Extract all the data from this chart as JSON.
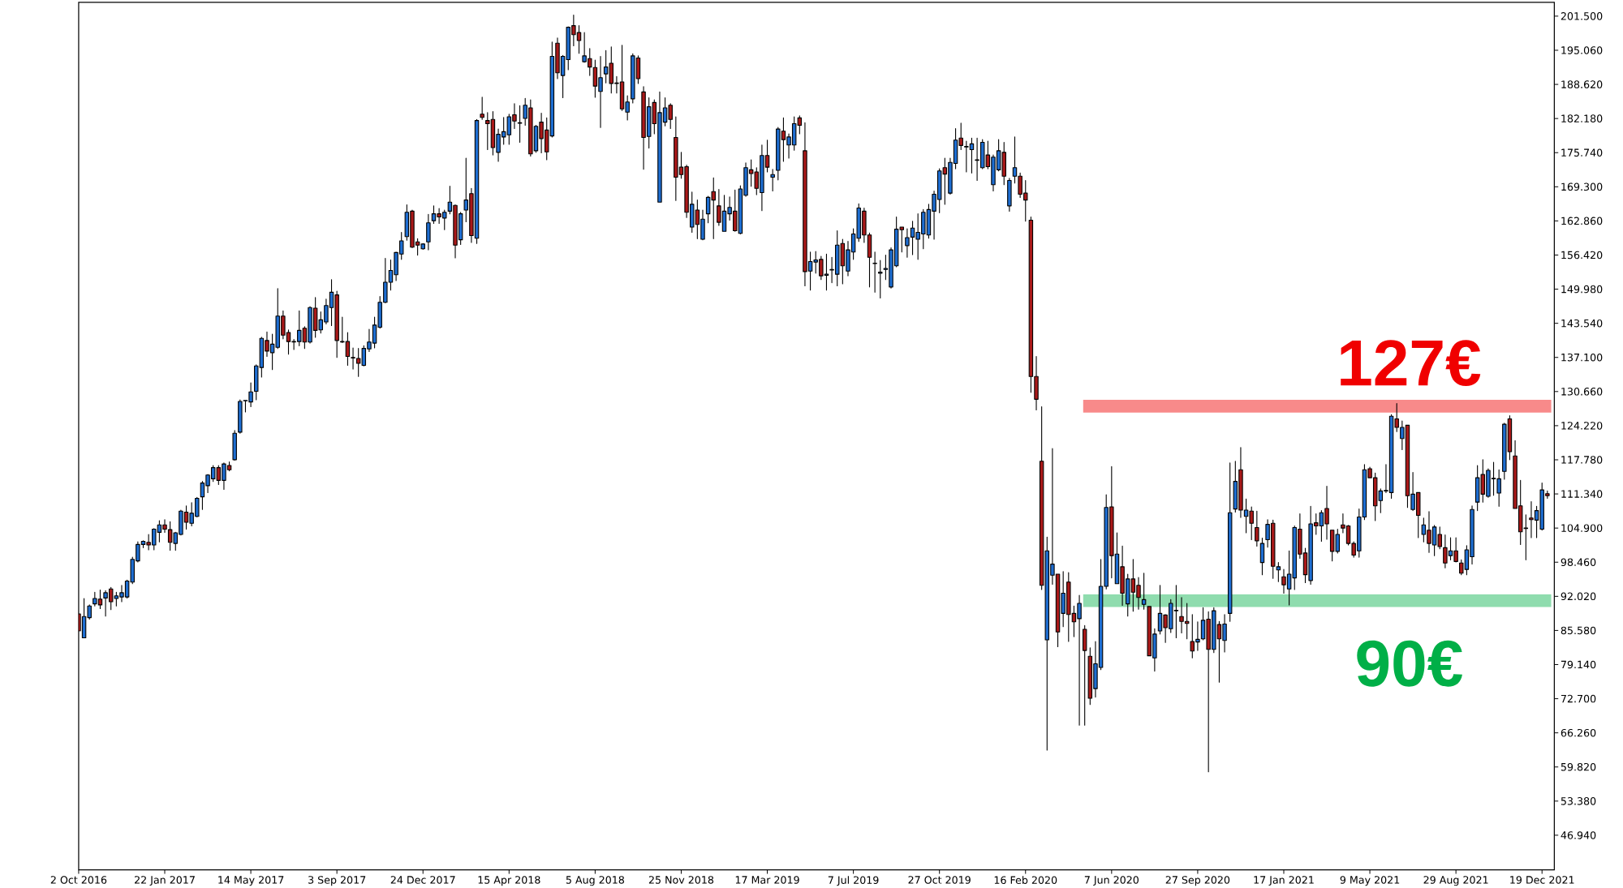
{
  "chart_data": {
    "type": "candlestick",
    "x": [
      "2016-10-02",
      "2016-10-09",
      "2016-10-16",
      "2016-10-23",
      "2016-10-30",
      "2016-11-06",
      "2016-11-13",
      "2016-11-20",
      "2016-11-27",
      "2016-12-04",
      "2016-12-11",
      "2016-12-18",
      "2016-12-25",
      "2017-01-01",
      "2017-01-08",
      "2017-01-15",
      "2017-01-22",
      "2017-01-29",
      "2017-02-05",
      "2017-02-12",
      "2017-02-19",
      "2017-02-26",
      "2017-03-05",
      "2017-03-12",
      "2017-03-19",
      "2017-03-26",
      "2017-04-02",
      "2017-04-09",
      "2017-04-16",
      "2017-04-23",
      "2017-04-30",
      "2017-05-07",
      "2017-05-14",
      "2017-05-21",
      "2017-05-28",
      "2017-06-04",
      "2017-06-11",
      "2017-06-18",
      "2017-06-25",
      "2017-07-02",
      "2017-07-09",
      "2017-07-16",
      "2017-07-23",
      "2017-07-30",
      "2017-08-06",
      "2017-08-13",
      "2017-08-20",
      "2017-08-27",
      "2017-09-03",
      "2017-09-10",
      "2017-09-17",
      "2017-09-24",
      "2017-10-01",
      "2017-10-08",
      "2017-10-15",
      "2017-10-22",
      "2017-10-29",
      "2017-11-05",
      "2017-11-12",
      "2017-11-19",
      "2017-11-26",
      "2017-12-03",
      "2017-12-10",
      "2017-12-17",
      "2017-12-24",
      "2017-12-31",
      "2018-01-07",
      "2018-01-14",
      "2018-01-21",
      "2018-01-28",
      "2018-02-04",
      "2018-02-11",
      "2018-02-18",
      "2018-02-25",
      "2018-03-04",
      "2018-03-11",
      "2018-03-18",
      "2018-03-25",
      "2018-04-01",
      "2018-04-08",
      "2018-04-15",
      "2018-04-22",
      "2018-04-29",
      "2018-05-06",
      "2018-05-13",
      "2018-05-20",
      "2018-05-27",
      "2018-06-03",
      "2018-06-10",
      "2018-06-17",
      "2018-06-24",
      "2018-07-01",
      "2018-07-08",
      "2018-07-15",
      "2018-07-22",
      "2018-07-29",
      "2018-08-05",
      "2018-08-12",
      "2018-08-19",
      "2018-08-26",
      "2018-09-02",
      "2018-09-09",
      "2018-09-16",
      "2018-09-23",
      "2018-09-30",
      "2018-10-07",
      "2018-10-14",
      "2018-10-21",
      "2018-10-28",
      "2018-11-04",
      "2018-11-11",
      "2018-11-18",
      "2018-11-25",
      "2018-12-02",
      "2018-12-09",
      "2018-12-16",
      "2018-12-23",
      "2018-12-30",
      "2019-01-06",
      "2019-01-13",
      "2019-01-20",
      "2019-01-27",
      "2019-02-03",
      "2019-02-10",
      "2019-02-17",
      "2019-02-24",
      "2019-03-03",
      "2019-03-10",
      "2019-03-17",
      "2019-03-24",
      "2019-03-31",
      "2019-04-07",
      "2019-04-14",
      "2019-04-21",
      "2019-04-28",
      "2019-05-05",
      "2019-05-12",
      "2019-05-19",
      "2019-05-26",
      "2019-06-02",
      "2019-06-09",
      "2019-06-16",
      "2019-06-23",
      "2019-06-30",
      "2019-07-07",
      "2019-07-14",
      "2019-07-21",
      "2019-07-28",
      "2019-08-04",
      "2019-08-11",
      "2019-08-18",
      "2019-08-25",
      "2019-09-01",
      "2019-09-08",
      "2019-09-15",
      "2019-09-22",
      "2019-09-29",
      "2019-10-06",
      "2019-10-13",
      "2019-10-20",
      "2019-10-27",
      "2019-11-03",
      "2019-11-10",
      "2019-11-17",
      "2019-11-24",
      "2019-12-01",
      "2019-12-08",
      "2019-12-15",
      "2019-12-22",
      "2019-12-29",
      "2020-01-05",
      "2020-01-12",
      "2020-01-19",
      "2020-01-26",
      "2020-02-02",
      "2020-02-09",
      "2020-02-16",
      "2020-02-23",
      "2020-03-01",
      "2020-03-08",
      "2020-03-15",
      "2020-03-22",
      "2020-03-29",
      "2020-04-05",
      "2020-04-12",
      "2020-04-19",
      "2020-04-26",
      "2020-05-03",
      "2020-05-10",
      "2020-05-17",
      "2020-05-24",
      "2020-05-31",
      "2020-06-07",
      "2020-06-14",
      "2020-06-21",
      "2020-06-28",
      "2020-07-05",
      "2020-07-12",
      "2020-07-19",
      "2020-07-26",
      "2020-08-02",
      "2020-08-09",
      "2020-08-16",
      "2020-08-23",
      "2020-08-30",
      "2020-09-06",
      "2020-09-13",
      "2020-09-20",
      "2020-09-27",
      "2020-10-04",
      "2020-10-11",
      "2020-10-18",
      "2020-10-25",
      "2020-11-01",
      "2020-11-08",
      "2020-11-15",
      "2020-11-22",
      "2020-11-29",
      "2020-12-06",
      "2020-12-13",
      "2020-12-20",
      "2020-12-27",
      "2021-01-03",
      "2021-01-10",
      "2021-01-17",
      "2021-01-24",
      "2021-01-31",
      "2021-02-07",
      "2021-02-14",
      "2021-02-21",
      "2021-02-28",
      "2021-03-07",
      "2021-03-14",
      "2021-03-21",
      "2021-03-28",
      "2021-04-04",
      "2021-04-11",
      "2021-04-18",
      "2021-04-25",
      "2021-05-02",
      "2021-05-09",
      "2021-05-16",
      "2021-05-23",
      "2021-05-30",
      "2021-06-06",
      "2021-06-13",
      "2021-06-20",
      "2021-06-27",
      "2021-07-04",
      "2021-07-11",
      "2021-07-18",
      "2021-07-25",
      "2021-08-01",
      "2021-08-08",
      "2021-08-15",
      "2021-08-22",
      "2021-08-29",
      "2021-09-05",
      "2021-09-12",
      "2021-09-19",
      "2021-09-26",
      "2021-10-03",
      "2021-10-10",
      "2021-10-17",
      "2021-10-24",
      "2021-10-31",
      "2021-11-07",
      "2021-11-14",
      "2021-11-21",
      "2021-11-28",
      "2021-12-05",
      "2021-12-12",
      "2021-12-19",
      "2021-12-26"
    ],
    "ohlc": [
      [
        88.7,
        88.7,
        85.5,
        85.5
      ],
      [
        84.2,
        91.6,
        84.2,
        88.2
      ],
      [
        88.0,
        90.4,
        87.7,
        90.2
      ],
      [
        90.6,
        92.8,
        90.2,
        91.6
      ],
      [
        91.5,
        93.2,
        89.7,
        90.4
      ],
      [
        91.7,
        93.1,
        88.3,
        92.7
      ],
      [
        93.4,
        93.7,
        89.5,
        91.0
      ],
      [
        91.6,
        92.8,
        90.2,
        92.1
      ],
      [
        91.9,
        94.1,
        91.0,
        92.7
      ],
      [
        91.9,
        95.1,
        91.7,
        94.9
      ],
      [
        94.7,
        99.4,
        94.4,
        99.0
      ],
      [
        98.7,
        102.3,
        98.5,
        101.8
      ],
      [
        101.8,
        102.5,
        101.2,
        102.4
      ],
      [
        102.2,
        103.7,
        100.8,
        101.7
      ],
      [
        101.7,
        104.8,
        100.8,
        104.7
      ],
      [
        104.1,
        106.3,
        102.3,
        105.5
      ],
      [
        105.5,
        106.5,
        104.1,
        104.7
      ],
      [
        104.6,
        106.1,
        100.7,
        102.2
      ],
      [
        102.0,
        104.1,
        100.7,
        104.0
      ],
      [
        103.7,
        108.3,
        103.6,
        108.1
      ],
      [
        107.9,
        109.1,
        104.7,
        106.0
      ],
      [
        105.8,
        109.7,
        105.3,
        107.7
      ],
      [
        107.1,
        110.7,
        107.0,
        110.5
      ],
      [
        110.8,
        113.7,
        108.4,
        113.4
      ],
      [
        112.9,
        115.0,
        111.6,
        114.9
      ],
      [
        114.2,
        116.7,
        113.7,
        116.3
      ],
      [
        116.3,
        116.7,
        113.1,
        113.9
      ],
      [
        113.9,
        117.2,
        112.2,
        117.0
      ],
      [
        116.7,
        117.4,
        115.7,
        115.9
      ],
      [
        117.8,
        123.3,
        117.7,
        122.8
      ],
      [
        123.0,
        129.1,
        122.8,
        128.8
      ],
      [
        128.9,
        129.0,
        126.8,
        129.0
      ],
      [
        128.7,
        132.3,
        127.8,
        130.6
      ],
      [
        130.7,
        135.7,
        129.1,
        135.5
      ],
      [
        135.2,
        140.9,
        133.4,
        140.7
      ],
      [
        140.3,
        141.9,
        137.3,
        138.3
      ],
      [
        138.0,
        141.5,
        134.8,
        139.6
      ],
      [
        139.0,
        150.1,
        138.8,
        144.9
      ],
      [
        144.9,
        145.9,
        140.6,
        141.3
      ],
      [
        141.8,
        142.3,
        137.7,
        140.1
      ],
      [
        140.1,
        140.5,
        138.6,
        140.0
      ],
      [
        140.1,
        145.9,
        139.3,
        142.2
      ],
      [
        142.6,
        142.9,
        138.8,
        140.0
      ],
      [
        140.0,
        146.7,
        139.8,
        146.5
      ],
      [
        146.4,
        148.4,
        140.9,
        142.2
      ],
      [
        142.3,
        145.7,
        141.7,
        144.2
      ],
      [
        143.8,
        148.1,
        143.4,
        146.9
      ],
      [
        146.5,
        151.8,
        143.1,
        149.4
      ],
      [
        148.9,
        149.6,
        137.1,
        140.3
      ],
      [
        140.1,
        144.7,
        139.9,
        140.0
      ],
      [
        140.1,
        141.8,
        135.6,
        137.3
      ],
      [
        137.1,
        138.9,
        134.9,
        137.0
      ],
      [
        136.9,
        138.8,
        133.5,
        136.0
      ],
      [
        135.6,
        139.3,
        135.5,
        138.8
      ],
      [
        138.7,
        142.4,
        138.2,
        140.0
      ],
      [
        139.8,
        144.7,
        138.9,
        143.2
      ],
      [
        142.8,
        148.6,
        142.6,
        147.5
      ],
      [
        147.5,
        155.8,
        147.4,
        151.3
      ],
      [
        151.3,
        155.5,
        149.8,
        153.5
      ],
      [
        152.7,
        157.0,
        151.6,
        156.9
      ],
      [
        156.6,
        160.7,
        155.6,
        159.1
      ],
      [
        159.9,
        165.9,
        159.2,
        164.5
      ],
      [
        164.7,
        164.9,
        157.8,
        157.9
      ],
      [
        158.9,
        159.5,
        156.4,
        158.3
      ],
      [
        157.6,
        158.6,
        157.5,
        158.5
      ],
      [
        158.9,
        164.1,
        157.4,
        162.5
      ],
      [
        162.9,
        165.7,
        162.4,
        164.2
      ],
      [
        164.2,
        165.2,
        162.4,
        163.6
      ],
      [
        163.4,
        164.9,
        161.2,
        164.5
      ],
      [
        164.7,
        169.4,
        164.2,
        166.4
      ],
      [
        165.8,
        165.9,
        155.9,
        158.3
      ],
      [
        159.3,
        164.5,
        158.4,
        164.2
      ],
      [
        164.9,
        174.7,
        162.7,
        166.8
      ],
      [
        168.0,
        169.0,
        158.8,
        160.1
      ],
      [
        159.6,
        182.0,
        158.6,
        181.8
      ],
      [
        183.0,
        186.2,
        182.0,
        182.4
      ],
      [
        181.8,
        183.3,
        176.3,
        181.2
      ],
      [
        182.0,
        183.5,
        175.3,
        176.7
      ],
      [
        175.8,
        180.2,
        174.1,
        179.2
      ],
      [
        178.7,
        182.4,
        177.3,
        179.7
      ],
      [
        179.1,
        183.0,
        177.3,
        182.5
      ],
      [
        182.9,
        185.0,
        180.3,
        181.7
      ],
      [
        181.4,
        184.6,
        177.7,
        181.3
      ],
      [
        182.2,
        186.0,
        180.9,
        184.7
      ],
      [
        184.2,
        185.7,
        175.1,
        175.5
      ],
      [
        176.1,
        180.9,
        175.8,
        180.7
      ],
      [
        181.5,
        183.2,
        175.7,
        178.4
      ],
      [
        180.0,
        182.3,
        174.4,
        175.9
      ],
      [
        178.9,
        196.6,
        178.7,
        193.9
      ],
      [
        196.4,
        197.4,
        189.7,
        190.8
      ],
      [
        190.3,
        194.1,
        186.1,
        193.9
      ],
      [
        193.3,
        199.5,
        191.4,
        199.4
      ],
      [
        199.7,
        201.7,
        195.9,
        198.0
      ],
      [
        198.4,
        199.7,
        194.5,
        196.9
      ],
      [
        192.9,
        198.4,
        192.8,
        194.0
      ],
      [
        193.5,
        195.4,
        190.3,
        191.9
      ],
      [
        191.8,
        193.2,
        186.2,
        188.3
      ],
      [
        187.3,
        193.9,
        180.5,
        189.9
      ],
      [
        190.6,
        195.0,
        188.9,
        191.9
      ],
      [
        192.6,
        195.7,
        187.0,
        188.8
      ],
      [
        188.9,
        190.1,
        187.0,
        188.8
      ],
      [
        189.1,
        196.0,
        183.7,
        184.0
      ],
      [
        183.4,
        186.5,
        181.9,
        185.3
      ],
      [
        185.9,
        194.4,
        185.1,
        194.0
      ],
      [
        193.6,
        194.0,
        188.8,
        189.7
      ],
      [
        187.2,
        188.2,
        172.6,
        178.6
      ],
      [
        178.8,
        186.1,
        176.6,
        184.4
      ],
      [
        185.2,
        185.7,
        179.3,
        181.2
      ],
      [
        166.4,
        187.2,
        166.4,
        183.3
      ],
      [
        181.5,
        186.1,
        180.8,
        184.2
      ],
      [
        184.7,
        185.0,
        180.3,
        182.0
      ],
      [
        178.6,
        182.5,
        166.7,
        171.1
      ],
      [
        173.0,
        175.8,
        170.9,
        171.6
      ],
      [
        173.1,
        173.4,
        163.5,
        164.5
      ],
      [
        161.7,
        168.3,
        160.7,
        166.0
      ],
      [
        164.9,
        166.8,
        159.5,
        162.2
      ],
      [
        159.4,
        164.9,
        159.3,
        163.2
      ],
      [
        164.2,
        167.5,
        162.5,
        167.3
      ],
      [
        168.4,
        171.0,
        159.5,
        166.8
      ],
      [
        165.7,
        168.8,
        162.0,
        162.6
      ],
      [
        160.9,
        167.7,
        160.9,
        164.7
      ],
      [
        164.2,
        167.4,
        163.0,
        165.4
      ],
      [
        164.7,
        168.7,
        160.9,
        161.0
      ],
      [
        160.5,
        169.5,
        160.4,
        168.9
      ],
      [
        167.7,
        173.8,
        167.5,
        172.9
      ],
      [
        172.5,
        174.4,
        169.4,
        171.8
      ],
      [
        172.1,
        172.9,
        167.8,
        169.0
      ],
      [
        168.2,
        177.2,
        164.8,
        175.2
      ],
      [
        175.2,
        178.1,
        172.1,
        173.0
      ],
      [
        171.1,
        172.6,
        168.5,
        171.6
      ],
      [
        172.4,
        180.5,
        170.6,
        180.2
      ],
      [
        179.8,
        182.3,
        174.1,
        178.2
      ],
      [
        177.2,
        179.3,
        174.7,
        178.7
      ],
      [
        177.2,
        182.5,
        176.2,
        181.2
      ],
      [
        182.3,
        182.7,
        179.3,
        180.9
      ],
      [
        176.1,
        181.4,
        150.6,
        153.3
      ],
      [
        153.4,
        157.0,
        149.8,
        155.2
      ],
      [
        155.1,
        157.1,
        153.0,
        155.5
      ],
      [
        155.6,
        156.2,
        151.8,
        152.5
      ],
      [
        152.6,
        156.6,
        149.8,
        152.8
      ],
      [
        153.6,
        156.0,
        151.2,
        153.7
      ],
      [
        152.8,
        161.0,
        150.6,
        158.3
      ],
      [
        158.6,
        159.4,
        151.0,
        154.4
      ],
      [
        153.4,
        159.0,
        152.5,
        157.4
      ],
      [
        157.0,
        161.4,
        155.6,
        160.4
      ],
      [
        159.6,
        166.1,
        159.0,
        165.3
      ],
      [
        164.7,
        165.3,
        158.8,
        160.2
      ],
      [
        160.2,
        160.6,
        150.4,
        156.0
      ],
      [
        154.8,
        157.0,
        149.4,
        154.9
      ],
      [
        153.0,
        155.4,
        148.3,
        153.2
      ],
      [
        153.7,
        156.4,
        151.8,
        153.9
      ],
      [
        150.4,
        157.8,
        150.2,
        157.4
      ],
      [
        154.4,
        163.6,
        154.2,
        161.3
      ],
      [
        161.7,
        161.7,
        157.0,
        161.2
      ],
      [
        158.2,
        161.4,
        156.0,
        159.7
      ],
      [
        159.8,
        162.8,
        156.5,
        161.5
      ],
      [
        159.4,
        164.2,
        155.6,
        160.7
      ],
      [
        160.4,
        165.0,
        157.6,
        164.5
      ],
      [
        160.2,
        166.0,
        159.6,
        165.0
      ],
      [
        164.7,
        168.5,
        159.4,
        167.9
      ],
      [
        166.9,
        172.7,
        164.4,
        172.3
      ],
      [
        172.9,
        174.7,
        166.0,
        171.7
      ],
      [
        168.1,
        174.7,
        167.9,
        173.9
      ],
      [
        173.7,
        180.3,
        172.7,
        178.1
      ],
      [
        178.5,
        181.3,
        176.3,
        177.1
      ],
      [
        176.8,
        177.9,
        172.1,
        176.9
      ],
      [
        176.3,
        178.5,
        171.9,
        177.4
      ],
      [
        174.3,
        178.5,
        170.5,
        174.4
      ],
      [
        172.9,
        178.2,
        172.7,
        177.7
      ],
      [
        175.3,
        177.9,
        172.7,
        173.1
      ],
      [
        169.7,
        175.3,
        168.5,
        174.9
      ],
      [
        172.5,
        178.2,
        172.3,
        176.1
      ],
      [
        175.8,
        177.7,
        169.7,
        171.3
      ],
      [
        165.7,
        170.9,
        164.7,
        170.5
      ],
      [
        171.3,
        178.7,
        170.0,
        172.9
      ],
      [
        171.3,
        171.9,
        167.3,
        167.9
      ],
      [
        168.1,
        170.5,
        162.8,
        166.8
      ],
      [
        163.0,
        163.6,
        130.5,
        133.5
      ],
      [
        133.5,
        137.3,
        127.2,
        129.2
      ],
      [
        117.5,
        127.8,
        93.3,
        94.1
      ],
      [
        83.8,
        103.2,
        63.0,
        100.6
      ],
      [
        96.0,
        119.9,
        94.3,
        98.1
      ],
      [
        96.2,
        96.2,
        82.5,
        85.3
      ],
      [
        88.8,
        96.7,
        86.3,
        92.6
      ],
      [
        94.7,
        96.5,
        83.5,
        88.6
      ],
      [
        88.8,
        90.2,
        84.4,
        87.2
      ],
      [
        87.8,
        92.2,
        67.7,
        90.7
      ],
      [
        85.8,
        86.5,
        67.7,
        81.8
      ],
      [
        80.7,
        82.3,
        71.6,
        72.8
      ],
      [
        74.6,
        83.5,
        73.0,
        79.3
      ],
      [
        78.6,
        99.0,
        78.2,
        93.9
      ],
      [
        93.9,
        111.2,
        93.4,
        108.8
      ],
      [
        108.9,
        116.5,
        95.5,
        99.7
      ],
      [
        94.4,
        104.0,
        94.4,
        100.0
      ],
      [
        97.6,
        101.5,
        90.3,
        92.6
      ],
      [
        90.6,
        96.2,
        88.3,
        95.3
      ],
      [
        95.3,
        99.0,
        89.2,
        92.8
      ],
      [
        94.1,
        95.6,
        89.6,
        91.8
      ],
      [
        90.5,
        96.4,
        89.6,
        91.4
      ],
      [
        90.1,
        90.1,
        80.8,
        80.8
      ],
      [
        80.4,
        85.9,
        77.9,
        84.9
      ],
      [
        85.5,
        94.1,
        84.9,
        88.8
      ],
      [
        88.5,
        88.6,
        83.3,
        86.1
      ],
      [
        85.9,
        91.4,
        85.2,
        90.7
      ],
      [
        89.3,
        94.1,
        84.2,
        89.4
      ],
      [
        88.2,
        91.8,
        85.1,
        87.3
      ],
      [
        87.3,
        90.7,
        84.0,
        86.9
      ],
      [
        83.5,
        88.6,
        80.4,
        81.7
      ],
      [
        83.4,
        87.2,
        81.8,
        83.9
      ],
      [
        84.0,
        89.9,
        83.8,
        87.5
      ],
      [
        87.7,
        89.1,
        58.9,
        82.0
      ],
      [
        82.0,
        89.9,
        81.4,
        89.3
      ],
      [
        86.7,
        87.3,
        75.8,
        84.0
      ],
      [
        83.7,
        88.6,
        81.5,
        86.8
      ],
      [
        88.8,
        117.2,
        87.3,
        107.8
      ],
      [
        108.5,
        117.5,
        107.9,
        113.7
      ],
      [
        115.9,
        120.1,
        106.9,
        108.3
      ],
      [
        107.1,
        110.4,
        104.0,
        108.3
      ],
      [
        108.1,
        108.9,
        102.7,
        105.8
      ],
      [
        105.0,
        108.1,
        101.5,
        102.5
      ],
      [
        98.4,
        103.0,
        96.1,
        102.0
      ],
      [
        102.7,
        106.5,
        101.3,
        105.6
      ],
      [
        105.8,
        106.4,
        95.4,
        97.7
      ],
      [
        97.0,
        98.4,
        94.8,
        97.6
      ],
      [
        95.7,
        97.1,
        92.6,
        94.2
      ],
      [
        93.4,
        100.6,
        90.4,
        96.2
      ],
      [
        95.5,
        105.3,
        93.3,
        105.0
      ],
      [
        104.7,
        107.6,
        99.2,
        100.0
      ],
      [
        100.2,
        101.1,
        94.6,
        96.1
      ],
      [
        95.0,
        109.0,
        94.3,
        105.7
      ],
      [
        105.9,
        107.6,
        103.7,
        105.3
      ],
      [
        105.3,
        108.2,
        102.4,
        107.8
      ],
      [
        108.6,
        112.8,
        102.8,
        105.7
      ],
      [
        104.5,
        104.5,
        98.7,
        100.5
      ],
      [
        100.5,
        104.7,
        100.2,
        103.7
      ],
      [
        105.5,
        107.6,
        104.0,
        104.9
      ],
      [
        105.3,
        105.4,
        101.7,
        102.0
      ],
      [
        102.0,
        102.3,
        99.4,
        99.8
      ],
      [
        100.6,
        108.5,
        99.4,
        107.0
      ],
      [
        107.0,
        116.9,
        106.5,
        115.9
      ],
      [
        116.1,
        116.4,
        114.4,
        114.4
      ],
      [
        114.4,
        115.3,
        106.3,
        109.1
      ],
      [
        110.1,
        112.3,
        107.8,
        111.9
      ],
      [
        111.9,
        116.9,
        111.6,
        112.0
      ],
      [
        111.6,
        126.3,
        110.5,
        126.0
      ],
      [
        125.5,
        128.4,
        123.1,
        123.9
      ],
      [
        121.8,
        125.1,
        119.7,
        123.9
      ],
      [
        124.3,
        124.3,
        108.8,
        111.0
      ],
      [
        108.4,
        115.4,
        108.2,
        111.3
      ],
      [
        111.6,
        111.6,
        103.1,
        107.3
      ],
      [
        103.7,
        106.8,
        102.3,
        105.5
      ],
      [
        104.5,
        108.0,
        100.3,
        102.0
      ],
      [
        101.7,
        105.4,
        99.7,
        105.1
      ],
      [
        103.7,
        105.1,
        101.0,
        101.4
      ],
      [
        101.2,
        103.6,
        97.4,
        98.3
      ],
      [
        99.7,
        103.1,
        98.9,
        100.6
      ],
      [
        100.6,
        103.1,
        98.5,
        98.6
      ],
      [
        98.3,
        98.9,
        96.1,
        96.4
      ],
      [
        97.1,
        101.6,
        96.1,
        100.8
      ],
      [
        99.5,
        109.1,
        98.1,
        108.4
      ],
      [
        109.8,
        116.7,
        108.2,
        114.4
      ],
      [
        115.0,
        117.8,
        109.8,
        111.3
      ],
      [
        110.9,
        116.1,
        110.7,
        115.8
      ],
      [
        114.3,
        117.3,
        111.1,
        114.2
      ],
      [
        111.5,
        115.9,
        109.0,
        114.2
      ],
      [
        115.6,
        124.7,
        114.1,
        124.5
      ],
      [
        125.5,
        126.1,
        117.8,
        119.3
      ],
      [
        118.5,
        121.4,
        108.6,
        108.6
      ],
      [
        109.1,
        113.9,
        101.8,
        104.2
      ],
      [
        104.8,
        107.4,
        98.9,
        104.9
      ],
      [
        106.8,
        109.9,
        103.1,
        106.5
      ],
      [
        106.4,
        109.0,
        103.1,
        108.2
      ],
      [
        104.7,
        113.4,
        104.5,
        112.1
      ],
      [
        111.4,
        111.9,
        110.5,
        111.0
      ]
    ],
    "colors": [
      "#aa1919",
      "#1e6ed2",
      "#1e6ed2",
      "#1e6ed2",
      "#aa1919",
      "#1e6ed2",
      "#aa1919",
      "#1e6ed2",
      "#1e6ed2",
      "#1e6ed2",
      "#1e6ed2",
      "#1e6ed2",
      "#1e6ed2",
      "#aa1919",
      "#1e6ed2",
      "#1e6ed2",
      "#aa1919",
      "#aa1919",
      "#1e6ed2",
      "#1e6ed2",
      "#aa1919",
      "#1e6ed2",
      "#1e6ed2",
      "#1e6ed2",
      "#1e6ed2",
      "#1e6ed2",
      "#aa1919",
      "#1e6ed2",
      "#aa1919",
      "#1e6ed2",
      "#1e6ed2",
      "#1e6ed2",
      "#1e6ed2",
      "#1e6ed2",
      "#1e6ed2",
      "#aa1919",
      "#1e6ed2",
      "#1e6ed2",
      "#aa1919",
      "#aa1919",
      "#aa1919",
      "#1e6ed2",
      "#aa1919",
      "#1e6ed2",
      "#aa1919",
      "#1e6ed2",
      "#1e6ed2",
      "#1e6ed2",
      "#aa1919",
      "#aa1919",
      "#aa1919",
      "#aa1919",
      "#aa1919",
      "#1e6ed2",
      "#1e6ed2",
      "#1e6ed2",
      "#1e6ed2",
      "#1e6ed2",
      "#1e6ed2",
      "#1e6ed2",
      "#1e6ed2",
      "#1e6ed2",
      "#aa1919",
      "#aa1919",
      "#1e6ed2",
      "#1e6ed2",
      "#1e6ed2",
      "#aa1919",
      "#1e6ed2",
      "#1e6ed2",
      "#aa1919",
      "#1e6ed2",
      "#1e6ed2",
      "#aa1919",
      "#1e6ed2",
      "#aa1919",
      "#aa1919",
      "#aa1919",
      "#1e6ed2",
      "#1e6ed2",
      "#1e6ed2",
      "#aa1919",
      "#aa1919",
      "#1e6ed2",
      "#aa1919",
      "#1e6ed2",
      "#aa1919",
      "#aa1919",
      "#1e6ed2",
      "#aa1919",
      "#1e6ed2",
      "#1e6ed2",
      "#aa1919",
      "#aa1919",
      "#1e6ed2",
      "#aa1919",
      "#aa1919",
      "#1e6ed2",
      "#1e6ed2",
      "#aa1919",
      "#aa1919",
      "#aa1919",
      "#1e6ed2",
      "#1e6ed2",
      "#aa1919",
      "#aa1919",
      "#1e6ed2",
      "#aa1919",
      "#1e6ed2",
      "#1e6ed2",
      "#aa1919",
      "#aa1919",
      "#aa1919",
      "#aa1919",
      "#1e6ed2",
      "#aa1919",
      "#1e6ed2",
      "#1e6ed2",
      "#aa1919",
      "#aa1919",
      "#1e6ed2",
      "#1e6ed2",
      "#aa1919",
      "#1e6ed2",
      "#1e6ed2",
      "#aa1919",
      "#aa1919",
      "#1e6ed2",
      "#aa1919",
      "#1e6ed2",
      "#1e6ed2",
      "#aa1919",
      "#1e6ed2",
      "#1e6ed2",
      "#aa1919",
      "#aa1919",
      "#1e6ed2",
      "#1e6ed2",
      "#aa1919",
      "#1e6ed2",
      "#5aa9e6",
      "#1e6ed2",
      "#aa1919",
      "#1e6ed2",
      "#1e6ed2",
      "#1e6ed2",
      "#aa1919",
      "#aa1919",
      "#5aa9e6",
      "#1e6ed2",
      "#1e6ed2",
      "#1e6ed2",
      "#1e6ed2",
      "#aa1919",
      "#1e6ed2",
      "#1e6ed2",
      "#1e6ed2",
      "#1e6ed2",
      "#1e6ed2",
      "#1e6ed2",
      "#1e6ed2",
      "#aa1919",
      "#1e6ed2",
      "#1e6ed2",
      "#aa1919",
      "#5aa9e6",
      "#1e6ed2",
      "#1e6ed2",
      "#1e6ed2",
      "#aa1919",
      "#1e6ed2",
      "#1e6ed2",
      "#aa1919",
      "#1e6ed2",
      "#1e6ed2",
      "#aa1919",
      "#aa1919",
      "#aa1919",
      "#aa1919",
      "#aa1919",
      "#1e6ed2",
      "#1e6ed2",
      "#aa1919",
      "#1e6ed2",
      "#aa1919",
      "#aa1919",
      "#1e6ed2",
      "#aa1919",
      "#aa1919",
      "#1e6ed2",
      "#1e6ed2",
      "#1e6ed2",
      "#aa1919",
      "#1e6ed2",
      "#aa1919",
      "#1e6ed2",
      "#aa1919",
      "#aa1919",
      "#1e6ed2",
      "#aa1919",
      "#1e6ed2",
      "#1e6ed2",
      "#aa1919",
      "#1e6ed2",
      "#1e6ed2",
      "#aa1919",
      "#aa1919",
      "#aa1919",
      "#1e6ed2",
      "#1e6ed2",
      "#aa1919",
      "#1e6ed2",
      "#aa1919",
      "#1e6ed2",
      "#1e6ed2",
      "#1e6ed2",
      "#aa1919",
      "#1e6ed2",
      "#aa1919",
      "#aa1919",
      "#1e6ed2",
      "#1e6ed2",
      "#aa1919",
      "#1e6ed2",
      "#aa1919",
      "#1e6ed2",
      "#1e6ed2",
      "#aa1919",
      "#aa1919",
      "#1e6ed2",
      "#aa1919",
      "#1e6ed2",
      "#aa1919",
      "#aa1919",
      "#1e6ed2",
      "#aa1919",
      "#aa1919",
      "#aa1919",
      "#1e6ed2",
      "#1e6ed2",
      "#aa1919",
      "#aa1919",
      "#1e6ed2",
      "#1e6ed2",
      "#1e6ed2",
      "#aa1919",
      "#1e6ed2",
      "#aa1919",
      "#1e6ed2",
      "#aa1919",
      "#1e6ed2",
      "#aa1919",
      "#1e6ed2",
      "#aa1919",
      "#aa1919",
      "#1e6ed2",
      "#aa1919",
      "#aa1919",
      "#1e6ed2",
      "#1e6ed2",
      "#1e6ed2",
      "#aa1919",
      "#1e6ed2",
      "#aa1919",
      "#1e6ed2",
      "#1e6ed2",
      "#aa1919",
      "#aa1919",
      "#aa1919",
      "#1e6ed2",
      "#aa1919",
      "#1e6ed2",
      "#1e6ed2",
      "#aa1919"
    ],
    "series": [
      {
        "type": "line",
        "name": "127€",
        "color": "#f88a8a",
        "x": [
          "2020-05-01",
          "2021-12-31"
        ],
        "values": [
          127.9,
          127.9
        ]
      },
      {
        "type": "line",
        "name": "90€",
        "color": "#8fdcae",
        "x": [
          "2020-05-01",
          "2021-12-31"
        ],
        "values": [
          91.2,
          91.2
        ]
      }
    ],
    "xlim": [
      "2016-10-02",
      "2022-01-04"
    ],
    "xticks": [
      {
        "value": "2016-10-02",
        "label": "2 Oct 2016"
      },
      {
        "value": "2017-01-22",
        "label": "22 Jan 2017"
      },
      {
        "value": "2017-05-14",
        "label": "14 May 2017"
      },
      {
        "value": "2017-09-03",
        "label": "3 Sep 2017"
      },
      {
        "value": "2017-12-24",
        "label": "24 Dec 2017"
      },
      {
        "value": "2018-04-15",
        "label": "15 Apr 2018"
      },
      {
        "value": "2018-08-05",
        "label": "5 Aug 2018"
      },
      {
        "value": "2018-11-25",
        "label": "25 Nov 2018"
      },
      {
        "value": "2019-03-17",
        "label": "17 Mar 2019"
      },
      {
        "value": "2019-07-07",
        "label": "7 Jul 2019"
      },
      {
        "value": "2019-10-27",
        "label": "27 Oct 2019"
      },
      {
        "value": "2020-02-16",
        "label": "16 Feb 2020"
      },
      {
        "value": "2020-06-07",
        "label": "7 Jun 2020"
      },
      {
        "value": "2020-09-27",
        "label": "27 Sep 2020"
      },
      {
        "value": "2021-01-17",
        "label": "17 Jan 2021"
      },
      {
        "value": "2021-05-09",
        "label": "9 May 2021"
      },
      {
        "value": "2021-08-29",
        "label": "29 Aug 2021"
      },
      {
        "value": "2021-12-19",
        "label": "19 Dec 2021"
      }
    ],
    "ylim": [
      40.4,
      204.1
    ],
    "yticks": [
      {
        "value": 201.5,
        "label": "201.500"
      },
      {
        "value": 195.06,
        "label": "195.060"
      },
      {
        "value": 188.62,
        "label": "188.620"
      },
      {
        "value": 182.18,
        "label": "182.180"
      },
      {
        "value": 175.74,
        "label": "175.740"
      },
      {
        "value": 169.3,
        "label": "169.300"
      },
      {
        "value": 162.86,
        "label": "162.860"
      },
      {
        "value": 156.42,
        "label": "156.420"
      },
      {
        "value": 149.98,
        "label": "149.980"
      },
      {
        "value": 143.54,
        "label": "143.540"
      },
      {
        "value": 137.1,
        "label": "137.100"
      },
      {
        "value": 130.66,
        "label": "130.660"
      },
      {
        "value": 124.22,
        "label": "124.220"
      },
      {
        "value": 117.78,
        "label": "117.780"
      },
      {
        "value": 111.34,
        "label": "111.340"
      },
      {
        "value": 104.9,
        "label": "104.900"
      },
      {
        "value": 98.46,
        "label": "98.460"
      },
      {
        "value": 92.02,
        "label": "92.020"
      },
      {
        "value": 85.58,
        "label": "85.580"
      },
      {
        "value": 79.14,
        "label": "79.140"
      },
      {
        "value": 72.7,
        "label": "72.700"
      },
      {
        "value": 66.26,
        "label": "66.260"
      },
      {
        "value": 59.82,
        "label": "59.820"
      },
      {
        "value": 53.38,
        "label": "53.380"
      },
      {
        "value": 46.94,
        "label": "46.940"
      }
    ]
  }
}
